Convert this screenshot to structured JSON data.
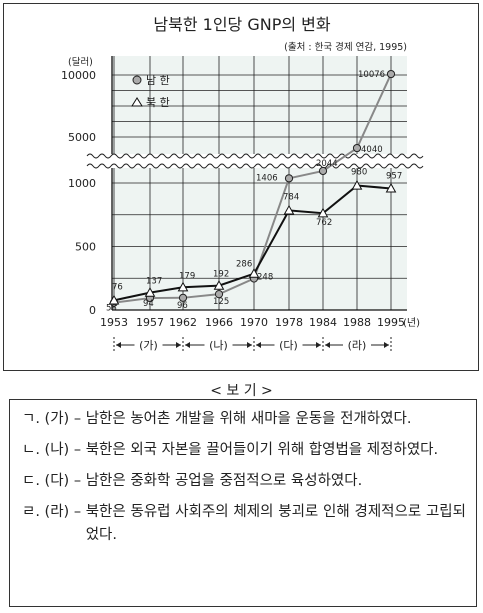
{
  "chart_data": {
    "type": "line",
    "title": "남북한 1인당 GNP의 변화",
    "source": "(출처 : 한국 경제 연감, 1995)",
    "ylabel": "(달러)",
    "xlabel": "(년)",
    "categories": [
      "1953",
      "1957",
      "1962",
      "1966",
      "1970",
      "1978",
      "1984",
      "1988",
      "1995"
    ],
    "yticks_upper": [
      "10000",
      "5000"
    ],
    "yticks_lower": [
      "1000",
      "500",
      "0"
    ],
    "axis_break": true,
    "ylim_lower": [
      0,
      1000
    ],
    "ylim_upper": [
      5000,
      10000
    ],
    "grid": true,
    "legend_position": "top-left",
    "series": [
      {
        "name": "남 한",
        "marker": "circle",
        "color": "#888888",
        "values": [
          58,
          94,
          96,
          125,
          248,
          1406,
          2044,
          4040,
          10076
        ],
        "labels": [
          "58",
          "94",
          "96",
          "125",
          "248",
          "1406",
          "2044",
          "4040",
          "10076"
        ]
      },
      {
        "name": "북 한",
        "marker": "triangle",
        "color": "#111111",
        "values": [
          76,
          137,
          179,
          192,
          286,
          784,
          762,
          980,
          957
        ],
        "labels": [
          "76",
          "137",
          "179",
          "192",
          "286",
          "784",
          "762",
          "980",
          "957"
        ]
      }
    ],
    "periods": [
      "(가)",
      "(나)",
      "(다)",
      "(라)"
    ]
  },
  "bogi": {
    "title": "< 보 기 >",
    "options": [
      {
        "marker": "ㄱ. (가) – ",
        "text": "남한은 농어촌 개발을 위해 새마을 운동을 전개하였다."
      },
      {
        "marker": "ㄴ. (나) – ",
        "text": "북한은 외국 자본을 끌어들이기 위해 합영법을 제정하였다."
      },
      {
        "marker": "ㄷ. (다) – ",
        "text": "남한은 중화학 공업을 중점적으로 육성하였다."
      },
      {
        "marker": "ㄹ. (라) – ",
        "text": "북한은 동유럽 사회주의 체제의 붕괴로 인해 경제적으로 고립되었다."
      }
    ]
  }
}
